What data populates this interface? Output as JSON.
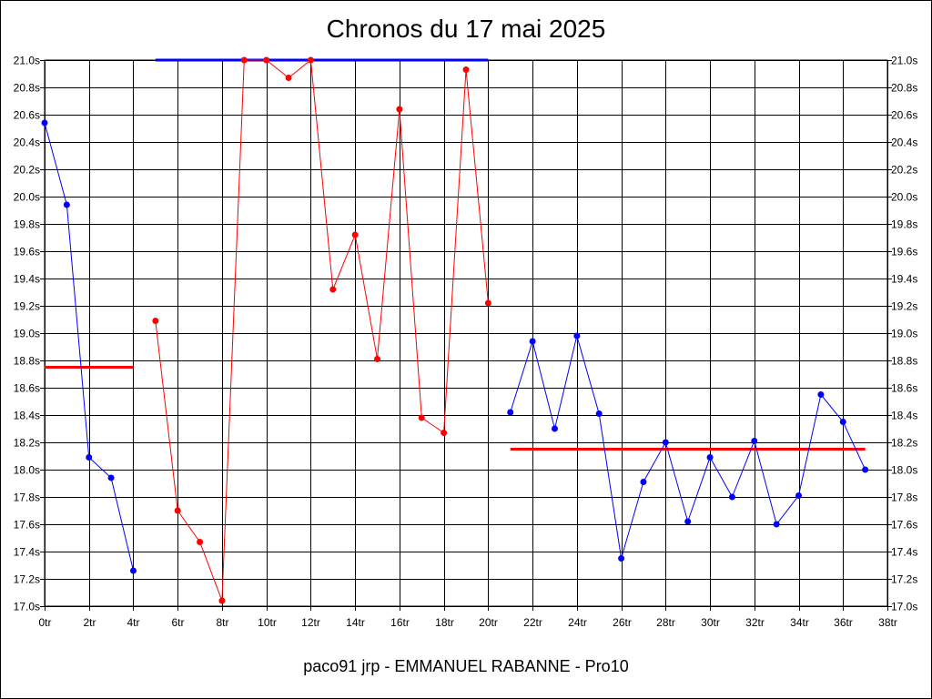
{
  "colors": {
    "red": "#ff0000",
    "blue": "#0000ff",
    "grid": "#000000",
    "background": "#ffffff"
  },
  "chart_data": {
    "type": "line",
    "title": "Chronos du 17 mai 2025",
    "footer": "paco91 jrp - EMMANUEL RABANNE - Pro10",
    "x_range": [
      0,
      38
    ],
    "y_range": [
      17.0,
      21.0
    ],
    "grid": true,
    "x_tick_labels": [
      "0tr",
      "2tr",
      "4tr",
      "6tr",
      "8tr",
      "10tr",
      "12tr",
      "14tr",
      "16tr",
      "18tr",
      "20tr",
      "22tr",
      "24tr",
      "26tr",
      "28tr",
      "30tr",
      "32tr",
      "34tr",
      "36tr",
      "38tr"
    ],
    "y_tick_labels": [
      "17.0s",
      "17.2s",
      "17.4s",
      "17.6s",
      "17.8s",
      "18.0s",
      "18.2s",
      "18.4s",
      "18.6s",
      "18.8s",
      "19.0s",
      "19.2s",
      "19.4s",
      "19.6s",
      "19.8s",
      "20.0s",
      "20.2s",
      "20.4s",
      "20.6s",
      "20.8s",
      "21.0s"
    ],
    "series": [
      {
        "color": "#0000ff",
        "x": [
          0,
          1,
          2,
          3,
          4
        ],
        "y": [
          20.54,
          19.94,
          18.09,
          17.94,
          17.26
        ]
      },
      {
        "color": "#ff0000",
        "x": [
          5,
          6,
          7,
          8,
          9,
          10,
          11,
          12,
          13,
          14,
          15,
          16,
          17,
          18,
          19,
          20
        ],
        "y": [
          19.09,
          17.7,
          17.47,
          17.04,
          21.0,
          21.0,
          20.87,
          21.0,
          19.32,
          19.72,
          18.81,
          20.64,
          18.38,
          18.27,
          20.93,
          19.22
        ]
      },
      {
        "color": "#0000ff",
        "x": [
          21,
          22,
          23,
          24,
          25,
          26,
          27,
          28,
          29,
          30,
          31,
          32,
          33,
          34,
          35,
          36,
          37
        ],
        "y": [
          18.42,
          18.94,
          18.3,
          18.98,
          18.41,
          17.35,
          17.91,
          18.2,
          17.62,
          18.09,
          17.8,
          18.21,
          17.6,
          17.81,
          18.55,
          18.35,
          18.0
        ]
      }
    ],
    "average_lines": [
      {
        "color": "#ff0000",
        "x_start": 0,
        "x_end": 4,
        "y": 18.75
      },
      {
        "color": "#0000ff",
        "x_start": 5,
        "x_end": 20,
        "y": 21.0
      },
      {
        "color": "#ff0000",
        "x_start": 21,
        "x_end": 37,
        "y": 18.15
      }
    ]
  }
}
